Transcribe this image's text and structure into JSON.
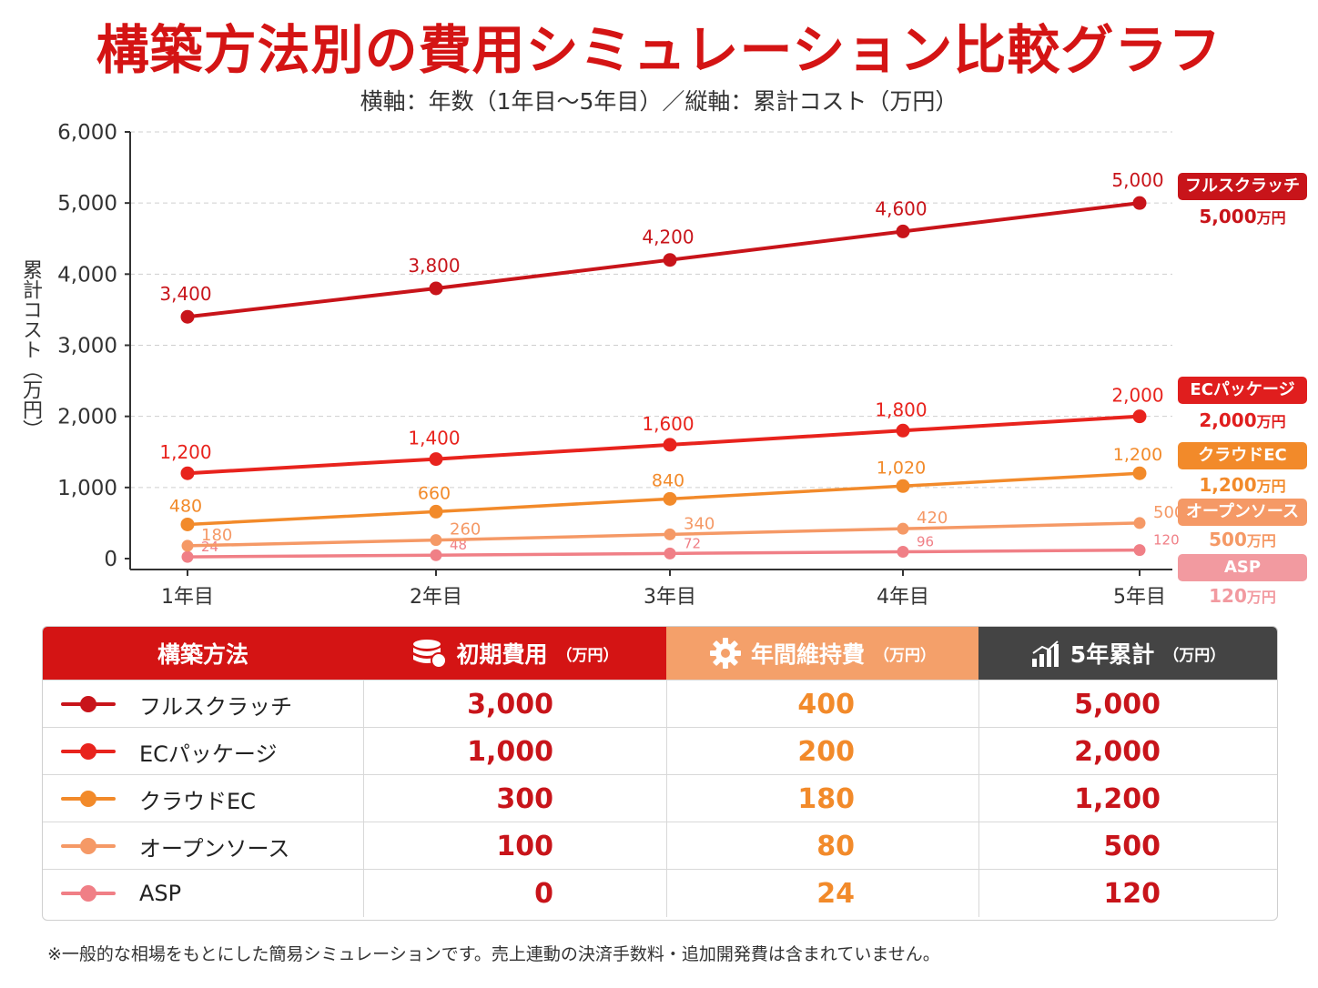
{
  "title": "構築方法別の費用シミュレーション比較グラフ",
  "subtitle": "横軸：年数（1年目〜5年目）／縦軸：累計コスト（万円）",
  "ylabel": "累計コスト（万円）",
  "chart_data": {
    "type": "line",
    "x": [
      "1年目",
      "2年目",
      "3年目",
      "4年目",
      "5年目"
    ],
    "ylim": [
      0,
      6000
    ],
    "yticks": [
      "0",
      "1,000",
      "2,000",
      "3,000",
      "4,000",
      "5,000",
      "6,000"
    ],
    "ytick_values": [
      0,
      1000,
      2000,
      3000,
      4000,
      5000,
      6000
    ],
    "grid": true,
    "series": [
      {
        "name": "フルスクラッチ",
        "values": [
          3400,
          3800,
          4200,
          4600,
          5000
        ],
        "labels": [
          "3,400",
          "3,800",
          "4,200",
          "4,600",
          "5,000"
        ],
        "color": "#c8141a"
      },
      {
        "name": "ECパッケージ",
        "values": [
          1200,
          1400,
          1600,
          1800,
          2000
        ],
        "labels": [
          "1,200",
          "1,400",
          "1,600",
          "1,800",
          "2,000"
        ],
        "color": "#e8231d"
      },
      {
        "name": "クラウドEC",
        "values": [
          480,
          660,
          840,
          1020,
          1200
        ],
        "labels": [
          "480",
          "660",
          "840",
          "1,020",
          "1,200"
        ],
        "color": "#f28a2a"
      },
      {
        "name": "オープンソース",
        "values": [
          180,
          260,
          340,
          420,
          500
        ],
        "labels": [
          "180",
          "260",
          "340",
          "420",
          "500"
        ],
        "color": "#f59966"
      },
      {
        "name": "ASP",
        "values": [
          24,
          48,
          72,
          96,
          120
        ],
        "labels": [
          "24",
          "48",
          "72",
          "96",
          "120"
        ],
        "color": "#f07f86"
      }
    ]
  },
  "end_labels": [
    {
      "name": "フルスクラッチ",
      "value": "5,000",
      "unit": "万円",
      "color": "#c8141a"
    },
    {
      "name": "ECパッケージ",
      "value": "2,000",
      "unit": "万円",
      "color": "#e01e1e"
    },
    {
      "name": "クラウドEC",
      "value": "1,200",
      "unit": "万円",
      "color": "#f28a2a"
    },
    {
      "name": "オープンソース",
      "value": "500",
      "unit": "万円",
      "color": "#f59966"
    },
    {
      "name": "ASP",
      "value": "120",
      "unit": "万円",
      "color": "#f29aa0"
    }
  ],
  "table": {
    "headers": {
      "method": "構築方法",
      "initial": "初期費用",
      "initial_unit": "（万円）",
      "annual": "年間維持費",
      "annual_unit": "（万円）",
      "total": "5年累計",
      "total_unit": "（万円）"
    },
    "header_colors": {
      "method": "#d41414",
      "initial": "#d41414",
      "annual": "#f4a06a",
      "total": "#444444"
    },
    "rows": [
      {
        "method": "フルスクラッチ",
        "initial": "3,000",
        "annual": "400",
        "total": "5,000"
      },
      {
        "method": "ECパッケージ",
        "initial": "1,000",
        "annual": "200",
        "total": "2,000"
      },
      {
        "method": "クラウドEC",
        "initial": "300",
        "annual": "180",
        "total": "1,200"
      },
      {
        "method": "オープンソース",
        "initial": "100",
        "annual": "80",
        "total": "500"
      },
      {
        "method": "ASP",
        "initial": "0",
        "annual": "24",
        "total": "120"
      }
    ],
    "column_text_colors": {
      "initial": "#c8141a",
      "annual": "#f28a2a",
      "total": "#c8141a"
    }
  },
  "note": "※一般的な相場をもとにした簡易シミュレーションです。売上連動の決済手数料・追加開発費は含まれていません。"
}
